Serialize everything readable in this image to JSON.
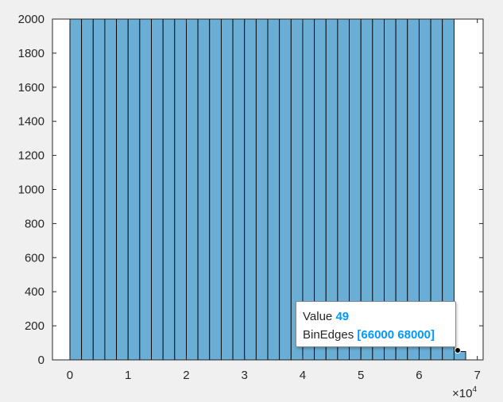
{
  "chart_data": {
    "type": "bar",
    "bin_width": 2000,
    "x_start": 0,
    "bin_counts": [
      2000,
      2000,
      2000,
      2000,
      2000,
      2000,
      2000,
      2000,
      2000,
      2000,
      2000,
      2000,
      2000,
      2000,
      2000,
      2000,
      2000,
      2000,
      2000,
      2000,
      2000,
      2000,
      2000,
      2000,
      2000,
      2000,
      2000,
      2000,
      2000,
      2000,
      2000,
      2000,
      2000,
      49
    ],
    "xlim": [
      -3000,
      71000
    ],
    "ylim": [
      0,
      2000
    ],
    "x_ticks": [
      0,
      10000,
      20000,
      30000,
      40000,
      50000,
      60000,
      70000
    ],
    "x_tick_labels": [
      "0",
      "1",
      "2",
      "3",
      "4",
      "5",
      "6",
      "7"
    ],
    "y_ticks": [
      0,
      200,
      400,
      600,
      800,
      1000,
      1200,
      1400,
      1600,
      1800,
      2000
    ],
    "x_exponent_base": "×10",
    "x_exponent_power": "4",
    "bar_color": "#6aaed6",
    "edge_color": "#000000",
    "grid": false,
    "datatip": {
      "value_label": "Value",
      "value": "49",
      "edges_label": "BinEdges",
      "edges": "[66000 68000]"
    }
  }
}
